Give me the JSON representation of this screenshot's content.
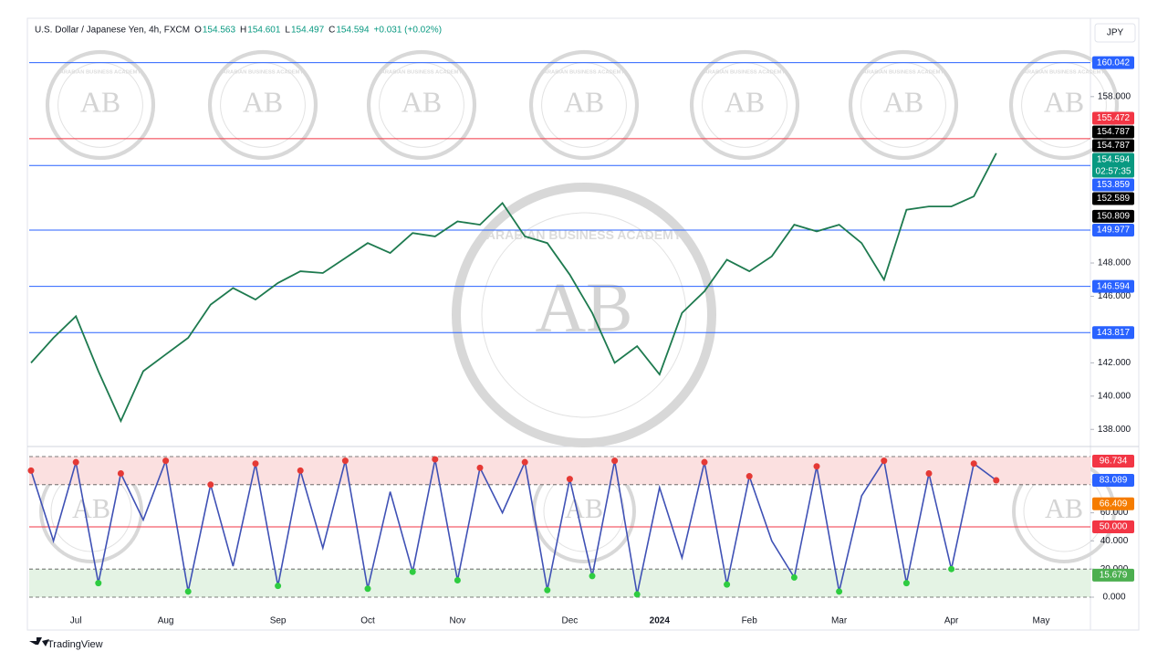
{
  "header": {
    "symbol": "U.S. Dollar / Japanese Yen, 4h, FXCM",
    "ohlc": [
      {
        "key": "O",
        "value": 154.563
      },
      {
        "key": "H",
        "value": 154.601
      },
      {
        "key": "L",
        "value": 154.497
      },
      {
        "key": "C",
        "value": 154.594
      }
    ],
    "change": "+0.031 (+0.02%)",
    "currency": "JPY",
    "brand": "TradingView"
  },
  "watermark": {
    "initials": "AB",
    "name": "ARABIAN BUSINESS ACADEMY"
  },
  "chart_data": [
    {
      "type": "line",
      "color": "#1e7a4f",
      "categories": [
        null,
        null,
        "Jul",
        null,
        null,
        null,
        "Aug",
        null,
        null,
        null,
        null,
        "Sep",
        null,
        null,
        null,
        "Oct",
        null,
        null,
        null,
        "Nov",
        null,
        null,
        null,
        null,
        "Dec",
        null,
        null,
        null,
        "2024",
        null,
        null,
        null,
        "Feb",
        null,
        null,
        null,
        "Mar",
        null,
        null,
        null,
        null,
        "Apr",
        null,
        null,
        null,
        "May",
        null,
        null
      ],
      "values": [
        142,
        143.5,
        144.8,
        141.5,
        138.5,
        141.5,
        142.5,
        143.5,
        145.5,
        146.5,
        145.8,
        146.8,
        147.5,
        147.4,
        148.3,
        149.2,
        148.6,
        149.8,
        149.6,
        150.5,
        150.3,
        151.6,
        149.6,
        149.2,
        147.3,
        145,
        142,
        143,
        141.3,
        145,
        146.3,
        148.2,
        147.5,
        148.4,
        150.3,
        149.9,
        150.3,
        149.2,
        147,
        151.2,
        151.4,
        151.4,
        152,
        154.6,
        null,
        null,
        null,
        null
      ],
      "ylim": [
        137.3,
        162.6
      ],
      "yticks": [
        {
          "value": 138,
          "label": "138.000"
        },
        {
          "value": 140,
          "label": "140.000"
        },
        {
          "value": 142,
          "label": "142.000"
        },
        {
          "value": 146,
          "label": "146.000"
        },
        {
          "value": 148,
          "label": "148.000"
        },
        {
          "value": 158,
          "label": "158.000"
        }
      ],
      "levels": [
        {
          "value": 160.042,
          "color": "#2962ff",
          "line": true
        },
        {
          "value": 155.472,
          "color": "#f23645",
          "line": true
        },
        {
          "value": 154.787,
          "color": "#000000",
          "line": false
        },
        {
          "value": 154.787,
          "color": "#000000",
          "line": false
        },
        {
          "value": 154.594,
          "color": "#089981",
          "line": false,
          "sublabel": "02:57:35"
        },
        {
          "value": 153.859,
          "color": "#2962ff",
          "line": true
        },
        {
          "value": 152.589,
          "color": "#000000",
          "line": false
        },
        {
          "value": 150.809,
          "color": "#000000",
          "line": false
        },
        {
          "value": 149.977,
          "color": "#2962ff",
          "line": true
        },
        {
          "value": 146.594,
          "color": "#2962ff",
          "line": true
        },
        {
          "value": 143.817,
          "color": "#2962ff",
          "line": true
        }
      ]
    },
    {
      "type": "line",
      "color": "#3f51b5",
      "values": [
        90,
        40,
        96,
        10,
        88,
        55,
        97,
        4,
        80,
        22,
        95,
        8,
        90,
        35,
        97,
        6,
        75,
        18,
        98,
        12,
        92,
        60,
        96,
        5,
        84,
        15,
        97,
        2,
        78,
        28,
        96,
        9,
        86,
        40,
        14,
        93,
        4,
        72,
        97,
        10,
        88,
        20,
        95,
        83.089,
        null,
        null,
        null,
        null
      ],
      "ylim": [
        -5.2,
        102.6
      ],
      "yticks": [
        {
          "value": 0,
          "label": "0.000"
        },
        {
          "value": 20,
          "label": "20.000"
        },
        {
          "value": 40,
          "label": "40.000"
        },
        {
          "value": 60,
          "label": "60.000"
        }
      ],
      "bands": [
        {
          "from": 80,
          "to": 100,
          "color": "#fbe0e0"
        },
        {
          "from": 0,
          "to": 20,
          "color": "#e4f3e4"
        }
      ],
      "levels": [
        {
          "value": 96.734,
          "color": "#f23645",
          "line": false
        },
        {
          "value": 83.089,
          "color": "#2962ff",
          "line": false
        },
        {
          "value": 66.409,
          "color": "#f57c00",
          "line": false
        },
        {
          "value": 50,
          "label": "50.000",
          "color": "#f23645",
          "line": true
        },
        {
          "value": 15.679,
          "color": "#4caf50",
          "line": false
        }
      ]
    }
  ]
}
